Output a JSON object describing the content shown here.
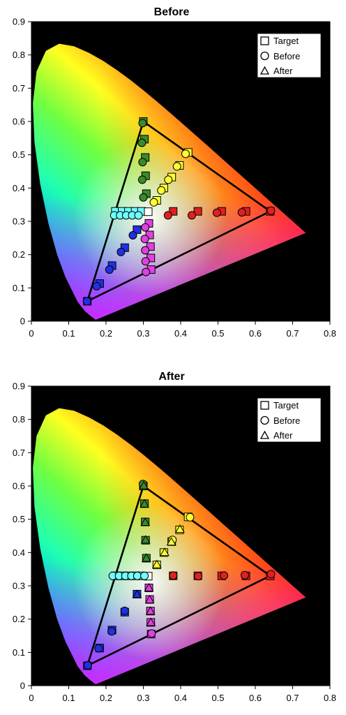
{
  "chart_data": [
    {
      "type": "scatter",
      "title": "Before",
      "xlim": [
        0,
        0.8
      ],
      "ylim": [
        0,
        0.9
      ],
      "xticks": [
        "0",
        "0.1",
        "0.2",
        "0.3",
        "0.4",
        "0.5",
        "0.6",
        "0.7",
        "0.8"
      ],
      "yticks": [
        "0",
        "0.1",
        "0.2",
        "0.3",
        "0.4",
        "0.5",
        "0.6",
        "0.7",
        "0.8",
        "0.9"
      ],
      "background": "#000000",
      "legend": {
        "placement": "top-right",
        "entries": [
          {
            "symbol": "square",
            "label": "Target"
          },
          {
            "symbol": "circle",
            "label": "Before"
          },
          {
            "symbol": "triangle",
            "label": "After"
          }
        ]
      },
      "gamut_triangle": [
        [
          0.64,
          0.33
        ],
        [
          0.3,
          0.6
        ],
        [
          0.15,
          0.06
        ]
      ],
      "series": [
        {
          "name": "Target",
          "marker": "square",
          "points": [
            {
              "x": 0.3,
              "y": 0.6,
              "c": "#3a8a2a"
            },
            {
              "x": 0.303,
              "y": 0.547,
              "c": "#3a8a2a"
            },
            {
              "x": 0.305,
              "y": 0.492,
              "c": "#3a8a2a"
            },
            {
              "x": 0.306,
              "y": 0.437,
              "c": "#3a8a2a"
            },
            {
              "x": 0.308,
              "y": 0.383,
              "c": "#3a8a2a"
            },
            {
              "x": 0.42,
              "y": 0.507,
              "c": "#ffff30"
            },
            {
              "x": 0.397,
              "y": 0.468,
              "c": "#ffff30"
            },
            {
              "x": 0.376,
              "y": 0.433,
              "c": "#ffff30"
            },
            {
              "x": 0.355,
              "y": 0.4,
              "c": "#ffff30"
            },
            {
              "x": 0.336,
              "y": 0.363,
              "c": "#ffff30"
            },
            {
              "x": 0.64,
              "y": 0.33,
              "c": "#e02020"
            },
            {
              "x": 0.575,
              "y": 0.33,
              "c": "#e02020"
            },
            {
              "x": 0.51,
              "y": 0.33,
              "c": "#e02020"
            },
            {
              "x": 0.446,
              "y": 0.33,
              "c": "#e02020"
            },
            {
              "x": 0.38,
              "y": 0.33,
              "c": "#e02020"
            },
            {
              "x": 0.225,
              "y": 0.33,
              "c": "#70ffff"
            },
            {
              "x": 0.243,
              "y": 0.33,
              "c": "#70ffff"
            },
            {
              "x": 0.26,
              "y": 0.33,
              "c": "#70ffff"
            },
            {
              "x": 0.278,
              "y": 0.33,
              "c": "#70ffff"
            },
            {
              "x": 0.295,
              "y": 0.33,
              "c": "#70ffff"
            },
            {
              "x": 0.313,
              "y": 0.329,
              "c": "#ffffff"
            },
            {
              "x": 0.15,
              "y": 0.06,
              "c": "#2030e0"
            },
            {
              "x": 0.183,
              "y": 0.113,
              "c": "#2030e0"
            },
            {
              "x": 0.216,
              "y": 0.167,
              "c": "#2030e0"
            },
            {
              "x": 0.25,
              "y": 0.221,
              "c": "#2030e0"
            },
            {
              "x": 0.283,
              "y": 0.275,
              "c": "#2030e0"
            },
            {
              "x": 0.321,
              "y": 0.155,
              "c": "#e040e0"
            },
            {
              "x": 0.32,
              "y": 0.19,
              "c": "#e040e0"
            },
            {
              "x": 0.319,
              "y": 0.224,
              "c": "#e040e0"
            },
            {
              "x": 0.317,
              "y": 0.259,
              "c": "#e040e0"
            },
            {
              "x": 0.315,
              "y": 0.294,
              "c": "#e040e0"
            }
          ]
        },
        {
          "name": "Before",
          "marker": "circle",
          "points": [
            {
              "x": 0.298,
              "y": 0.595,
              "c": "#3a8a2a"
            },
            {
              "x": 0.296,
              "y": 0.536,
              "c": "#3a8a2a"
            },
            {
              "x": 0.298,
              "y": 0.478,
              "c": "#3a8a2a"
            },
            {
              "x": 0.297,
              "y": 0.425,
              "c": "#3a8a2a"
            },
            {
              "x": 0.3,
              "y": 0.372,
              "c": "#3a8a2a"
            },
            {
              "x": 0.413,
              "y": 0.503,
              "c": "#ffff30"
            },
            {
              "x": 0.39,
              "y": 0.465,
              "c": "#ffff30"
            },
            {
              "x": 0.367,
              "y": 0.425,
              "c": "#ffff30"
            },
            {
              "x": 0.348,
              "y": 0.393,
              "c": "#ffff30"
            },
            {
              "x": 0.328,
              "y": 0.357,
              "c": "#ffff30"
            },
            {
              "x": 0.642,
              "y": 0.332,
              "c": "#e02020"
            },
            {
              "x": 0.564,
              "y": 0.327,
              "c": "#e02020"
            },
            {
              "x": 0.497,
              "y": 0.326,
              "c": "#e02020"
            },
            {
              "x": 0.43,
              "y": 0.318,
              "c": "#e02020"
            },
            {
              "x": 0.366,
              "y": 0.318,
              "c": "#e02020"
            },
            {
              "x": 0.222,
              "y": 0.318,
              "c": "#70ffff"
            },
            {
              "x": 0.238,
              "y": 0.318,
              "c": "#70ffff"
            },
            {
              "x": 0.254,
              "y": 0.318,
              "c": "#70ffff"
            },
            {
              "x": 0.27,
              "y": 0.318,
              "c": "#70ffff"
            },
            {
              "x": 0.287,
              "y": 0.318,
              "c": "#70ffff"
            },
            {
              "x": 0.149,
              "y": 0.06,
              "c": "#2030e0"
            },
            {
              "x": 0.175,
              "y": 0.105,
              "c": "#2030e0"
            },
            {
              "x": 0.209,
              "y": 0.155,
              "c": "#2030e0"
            },
            {
              "x": 0.24,
              "y": 0.208,
              "c": "#2030e0"
            },
            {
              "x": 0.272,
              "y": 0.258,
              "c": "#2030e0"
            },
            {
              "x": 0.307,
              "y": 0.148,
              "c": "#e040e0"
            },
            {
              "x": 0.306,
              "y": 0.18,
              "c": "#e040e0"
            },
            {
              "x": 0.305,
              "y": 0.213,
              "c": "#e040e0"
            },
            {
              "x": 0.304,
              "y": 0.247,
              "c": "#e040e0"
            },
            {
              "x": 0.305,
              "y": 0.282,
              "c": "#e040e0"
            }
          ]
        },
        {
          "name": "After",
          "marker": "triangle",
          "points": []
        }
      ]
    },
    {
      "type": "scatter",
      "title": "After",
      "xlim": [
        0,
        0.8
      ],
      "ylim": [
        0,
        0.9
      ],
      "xticks": [
        "0",
        "0.1",
        "0.2",
        "0.3",
        "0.4",
        "0.5",
        "0.6",
        "0.7",
        "0.8"
      ],
      "yticks": [
        "0",
        "0.1",
        "0.2",
        "0.3",
        "0.4",
        "0.5",
        "0.6",
        "0.7",
        "0.8",
        "0.9"
      ],
      "background": "#000000",
      "legend": {
        "placement": "top-right",
        "entries": [
          {
            "symbol": "square",
            "label": "Target"
          },
          {
            "symbol": "circle",
            "label": "Before"
          },
          {
            "symbol": "triangle",
            "label": "After"
          }
        ]
      },
      "gamut_triangle": [
        [
          0.64,
          0.33
        ],
        [
          0.3,
          0.6
        ],
        [
          0.15,
          0.06
        ]
      ],
      "series": [
        {
          "name": "Target",
          "marker": "square",
          "points": [
            {
              "x": 0.3,
              "y": 0.6,
              "c": "#3a8a2a"
            },
            {
              "x": 0.303,
              "y": 0.547,
              "c": "#3a8a2a"
            },
            {
              "x": 0.305,
              "y": 0.492,
              "c": "#3a8a2a"
            },
            {
              "x": 0.306,
              "y": 0.437,
              "c": "#3a8a2a"
            },
            {
              "x": 0.308,
              "y": 0.383,
              "c": "#3a8a2a"
            },
            {
              "x": 0.42,
              "y": 0.507,
              "c": "#ffff30"
            },
            {
              "x": 0.397,
              "y": 0.468,
              "c": "#ffff30"
            },
            {
              "x": 0.376,
              "y": 0.433,
              "c": "#ffff30"
            },
            {
              "x": 0.355,
              "y": 0.4,
              "c": "#ffff30"
            },
            {
              "x": 0.336,
              "y": 0.363,
              "c": "#ffff30"
            },
            {
              "x": 0.64,
              "y": 0.33,
              "c": "#e02020"
            },
            {
              "x": 0.575,
              "y": 0.33,
              "c": "#e02020"
            },
            {
              "x": 0.51,
              "y": 0.33,
              "c": "#e02020"
            },
            {
              "x": 0.446,
              "y": 0.33,
              "c": "#e02020"
            },
            {
              "x": 0.38,
              "y": 0.33,
              "c": "#e02020"
            },
            {
              "x": 0.225,
              "y": 0.33,
              "c": "#70ffff"
            },
            {
              "x": 0.243,
              "y": 0.33,
              "c": "#70ffff"
            },
            {
              "x": 0.26,
              "y": 0.33,
              "c": "#70ffff"
            },
            {
              "x": 0.278,
              "y": 0.33,
              "c": "#70ffff"
            },
            {
              "x": 0.295,
              "y": 0.33,
              "c": "#70ffff"
            },
            {
              "x": 0.313,
              "y": 0.329,
              "c": "#ffffff"
            },
            {
              "x": 0.15,
              "y": 0.06,
              "c": "#2030e0"
            },
            {
              "x": 0.183,
              "y": 0.113,
              "c": "#2030e0"
            },
            {
              "x": 0.216,
              "y": 0.167,
              "c": "#2030e0"
            },
            {
              "x": 0.25,
              "y": 0.221,
              "c": "#2030e0"
            },
            {
              "x": 0.283,
              "y": 0.275,
              "c": "#2030e0"
            },
            {
              "x": 0.321,
              "y": 0.155,
              "c": "#e040e0"
            },
            {
              "x": 0.32,
              "y": 0.19,
              "c": "#e040e0"
            },
            {
              "x": 0.319,
              "y": 0.224,
              "c": "#e040e0"
            },
            {
              "x": 0.317,
              "y": 0.259,
              "c": "#e040e0"
            },
            {
              "x": 0.315,
              "y": 0.294,
              "c": "#e040e0"
            }
          ]
        },
        {
          "name": "Before",
          "marker": "circle",
          "points": [
            {
              "x": 0.299,
              "y": 0.606,
              "c": "#3a8a2a"
            },
            {
              "x": 0.425,
              "y": 0.506,
              "c": "#ffff30"
            },
            {
              "x": 0.378,
              "y": 0.438,
              "c": "#ffff30"
            },
            {
              "x": 0.642,
              "y": 0.335,
              "c": "#e02020"
            },
            {
              "x": 0.572,
              "y": 0.332,
              "c": "#e02020"
            },
            {
              "x": 0.516,
              "y": 0.331,
              "c": "#e02020"
            },
            {
              "x": 0.447,
              "y": 0.329,
              "c": "#e02020"
            },
            {
              "x": 0.38,
              "y": 0.331,
              "c": "#e02020"
            },
            {
              "x": 0.218,
              "y": 0.33,
              "c": "#70ffff"
            },
            {
              "x": 0.235,
              "y": 0.33,
              "c": "#70ffff"
            },
            {
              "x": 0.252,
              "y": 0.33,
              "c": "#70ffff"
            },
            {
              "x": 0.268,
              "y": 0.33,
              "c": "#70ffff"
            },
            {
              "x": 0.284,
              "y": 0.33,
              "c": "#70ffff"
            },
            {
              "x": 0.303,
              "y": 0.33,
              "c": "#70ffff"
            },
            {
              "x": 0.151,
              "y": 0.061,
              "c": "#2030e0"
            },
            {
              "x": 0.18,
              "y": 0.112,
              "c": "#2030e0"
            },
            {
              "x": 0.215,
              "y": 0.163,
              "c": "#2030e0"
            },
            {
              "x": 0.25,
              "y": 0.225,
              "c": "#2030e0"
            },
            {
              "x": 0.322,
              "y": 0.157,
              "c": "#e040e0"
            }
          ]
        },
        {
          "name": "After",
          "marker": "triangle",
          "points": [
            {
              "x": 0.301,
              "y": 0.601,
              "c": "#3a8a2a"
            },
            {
              "x": 0.303,
              "y": 0.546,
              "c": "#3a8a2a"
            },
            {
              "x": 0.305,
              "y": 0.491,
              "c": "#3a8a2a"
            },
            {
              "x": 0.306,
              "y": 0.438,
              "c": "#3a8a2a"
            },
            {
              "x": 0.308,
              "y": 0.383,
              "c": "#3a8a2a"
            },
            {
              "x": 0.398,
              "y": 0.47,
              "c": "#ffff30"
            },
            {
              "x": 0.375,
              "y": 0.432,
              "c": "#ffff30"
            },
            {
              "x": 0.357,
              "y": 0.4,
              "c": "#ffff30"
            },
            {
              "x": 0.336,
              "y": 0.364,
              "c": "#ffff30"
            },
            {
              "x": 0.283,
              "y": 0.274,
              "c": "#2030e0"
            },
            {
              "x": 0.32,
              "y": 0.19,
              "c": "#e040e0"
            },
            {
              "x": 0.319,
              "y": 0.224,
              "c": "#e040e0"
            },
            {
              "x": 0.317,
              "y": 0.258,
              "c": "#e040e0"
            },
            {
              "x": 0.315,
              "y": 0.294,
              "c": "#e040e0"
            }
          ]
        }
      ]
    }
  ]
}
